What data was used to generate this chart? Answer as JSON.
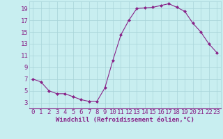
{
  "x": [
    0,
    1,
    2,
    3,
    4,
    5,
    6,
    7,
    8,
    9,
    10,
    11,
    12,
    13,
    14,
    15,
    16,
    17,
    18,
    19,
    20,
    21,
    22,
    23
  ],
  "y": [
    7.0,
    6.5,
    5.0,
    4.5,
    4.5,
    4.0,
    3.5,
    3.2,
    3.2,
    5.5,
    10.2,
    14.5,
    17.0,
    19.0,
    19.1,
    19.2,
    19.5,
    19.8,
    19.2,
    18.5,
    16.5,
    15.0,
    13.0,
    11.5
  ],
  "line_color": "#882288",
  "marker": "D",
  "marker_size": 2.0,
  "bg_color": "#C8EEF0",
  "grid_color": "#A8D4D8",
  "xlabel": "Windchill (Refroidissement éolien,°C)",
  "xlim": [
    -0.5,
    23.5
  ],
  "ylim": [
    2.0,
    20.2
  ],
  "yticks": [
    3,
    5,
    7,
    9,
    11,
    13,
    15,
    17,
    19
  ],
  "xticks": [
    0,
    1,
    2,
    3,
    4,
    5,
    6,
    7,
    8,
    9,
    10,
    11,
    12,
    13,
    14,
    15,
    16,
    17,
    18,
    19,
    20,
    21,
    22,
    23
  ],
  "xlabel_color": "#882288",
  "xlabel_fontsize": 6.5,
  "tick_fontsize": 6.5,
  "tick_color": "#882288",
  "linewidth": 0.8,
  "spine_color": "#882288"
}
